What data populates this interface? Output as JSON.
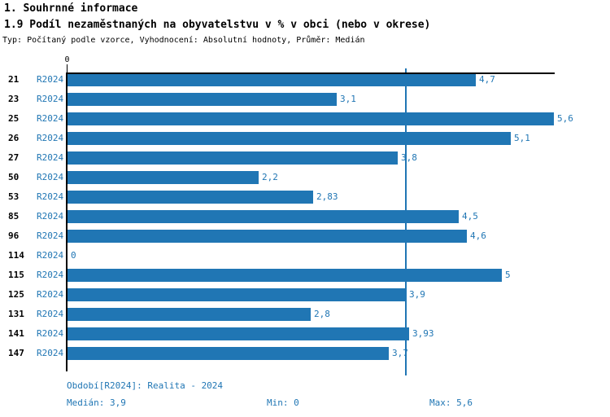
{
  "header": {
    "section_title": "1. Souhrnné informace",
    "chart_title": "1.9 Podíl nezaměstnaných na obyvatelstvu v % v obci (nebo v okrese)",
    "subtitle": "Typ: Počítaný podle vzorce, Vyhodnocení: Absolutní hodnoty, Průměr: Medián"
  },
  "colors": {
    "bar": "#2076B4",
    "link": "#2076B4",
    "value_label": "#2076B4",
    "median_line": "#2076B4",
    "footer_text": "#2076B4",
    "axis": "#000000"
  },
  "chart_data": {
    "type": "bar",
    "orientation": "horizontal",
    "title": "1.9 Podíl nezaměstnaných na obyvatelstvu v % v obci (nebo v okrese)",
    "categories": [
      "21",
      "23",
      "25",
      "26",
      "27",
      "50",
      "53",
      "85",
      "96",
      "114",
      "115",
      "125",
      "131",
      "141",
      "147"
    ],
    "series_label": "R2024",
    "values": [
      4.7,
      3.1,
      5.6,
      5.1,
      3.8,
      2.2,
      2.83,
      4.5,
      4.6,
      0,
      5,
      3.9,
      2.8,
      3.93,
      3.7
    ],
    "value_labels": [
      "4,7",
      "3,1",
      "5,6",
      "5,1",
      "3,8",
      "2,2",
      "2,83",
      "4,5",
      "4,6",
      "0",
      "5",
      "3,9",
      "2,8",
      "3,93",
      "3,7"
    ],
    "xlim": [
      0,
      5.6
    ],
    "x_axis_tick_label": "0",
    "median_line_value": 3.9,
    "grid": false,
    "legend": false
  },
  "footer": {
    "period": "Období[R2024]: Realita - 2024",
    "median": "Medián: 3,9",
    "min": "Min: 0",
    "max": "Max: 5,6"
  }
}
